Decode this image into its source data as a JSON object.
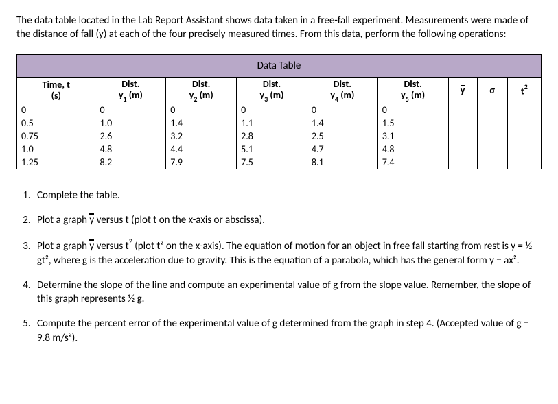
{
  "intro": "The data table located in the Lab Report Assistant shows data taken in a free-fall experiment. Measurements were made of the distance of fall (y) at each of the four precisely measured times. From this data, perform the following operations:",
  "table": {
    "title": "Data Table",
    "headers": {
      "time_label": "Time, t",
      "time_unit": "(s)",
      "dist_label": "Dist.",
      "y1": "y",
      "y1_sub": "1",
      "y2": "y",
      "y2_sub": "2",
      "y3": "y",
      "y3_sub": "3",
      "y4": "y",
      "y4_sub": "4",
      "y5": "y",
      "y5_sub": "5",
      "m_unit": " (m)",
      "ybar": "y",
      "sigma": "σ",
      "t2": "t",
      "t2_sup": "2"
    },
    "rows": [
      {
        "t": "0",
        "y1": "0",
        "y2": "0",
        "y3": "0",
        "y4": "0",
        "y5": "0",
        "ybar": "",
        "sigma": "",
        "t2": ""
      },
      {
        "t": "0.5",
        "y1": "1.0",
        "y2": "1.4",
        "y3": "1.1",
        "y4": "1.4",
        "y5": "1.5",
        "ybar": "",
        "sigma": "",
        "t2": ""
      },
      {
        "t": "0.75",
        "y1": "2.6",
        "y2": "3.2",
        "y3": "2.8",
        "y4": "2.5",
        "y5": "3.1",
        "ybar": "",
        "sigma": "",
        "t2": ""
      },
      {
        "t": "1.0",
        "y1": "4.8",
        "y2": "4.4",
        "y3": "5.1",
        "y4": "4.7",
        "y5": "4.8",
        "ybar": "",
        "sigma": "",
        "t2": ""
      },
      {
        "t": "1.25",
        "y1": "8.2",
        "y2": "7.9",
        "y3": "7.5",
        "y4": "8.1",
        "y5": "7.4",
        "ybar": "",
        "sigma": "",
        "t2": ""
      }
    ]
  },
  "questions": {
    "q1": "Complete the table.",
    "q2_pre": "Plot a graph ",
    "q2_post": " versus t (plot t on the x-axis or abscissa).",
    "q3_pre": "Plot a graph ",
    "q3_mid": " versus t",
    "q3_post": " (plot t² on the x-axis). The equation of motion for an object in free fall starting from rest is y = ½ gt², where g is the acceleration due to gravity. This is the equation of a parabola, which has the general form y = ax².",
    "q4": "Determine the slope of the line and compute an experimental value of g from the slope value. Remember, the slope of this graph represents ½ g.",
    "q5": "Compute the percent error of the experimental value of g determined from the graph in step 4. (Accepted value of g = 9.8 m/s²).",
    "ybar": "y",
    "sup2": "2"
  },
  "style": {
    "header_bg": "#b8a8c8",
    "border_color": "#000000",
    "font_family": "Calibri, Arial, sans-serif",
    "body_fontsize": 15,
    "table_fontsize": 14
  }
}
